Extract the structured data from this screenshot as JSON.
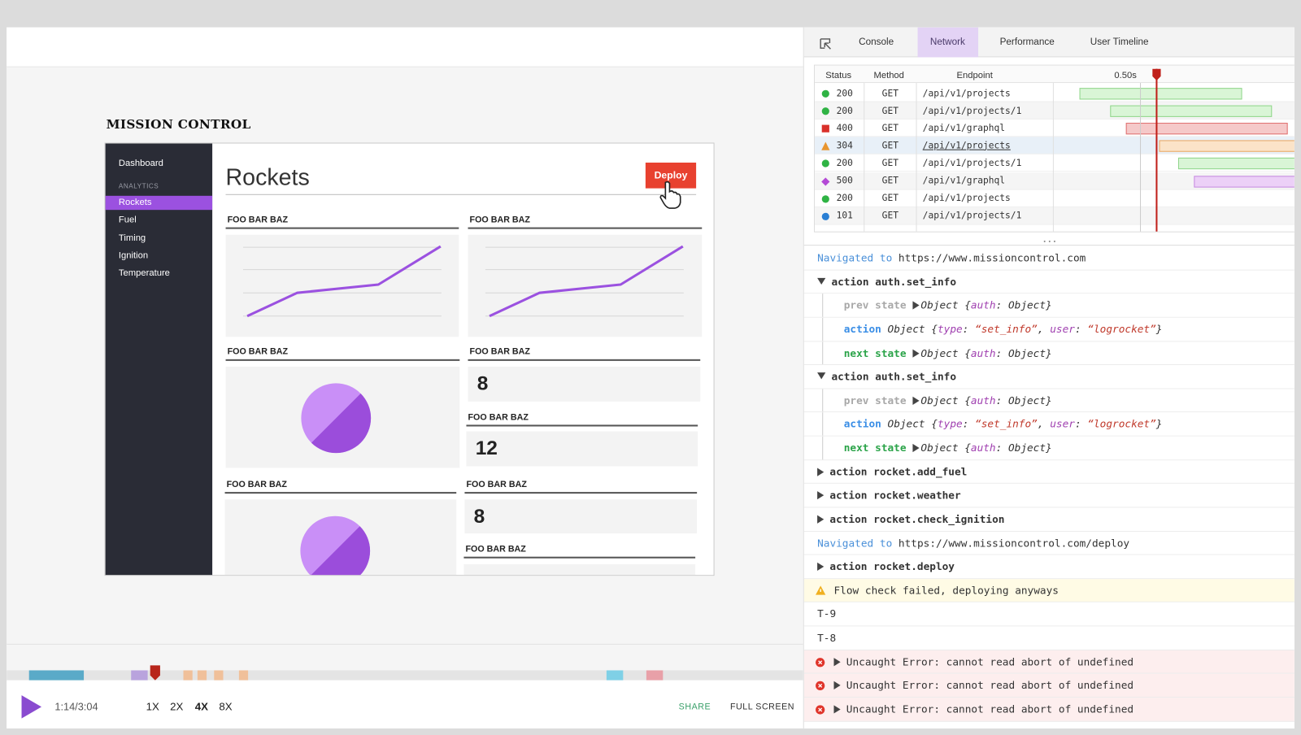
{
  "app": {
    "title": "MISSION CONTROL",
    "sidebar": {
      "top": "Dashboard",
      "section": "ANALYTICS",
      "items": [
        "Rockets",
        "Fuel",
        "Timing",
        "Ignition",
        "Temperature"
      ]
    },
    "page_title": "Rockets",
    "deploy": "Deploy",
    "cards": [
      {
        "label": "FOO BAR BAZ"
      },
      {
        "label": "FOO BAR BAZ"
      },
      {
        "label": "FOO BAR BAZ"
      },
      {
        "label": "FOO BAR BAZ",
        "value": 8
      },
      {
        "label": "FOO BAR BAZ",
        "value": 12
      },
      {
        "label": "FOO BAR BAZ"
      },
      {
        "label": "FOO BAR BAZ",
        "value": 8
      },
      {
        "label": "FOO BAR BAZ"
      }
    ]
  },
  "player": {
    "time": "1:14/3:04",
    "speeds": [
      "1X",
      "2X",
      "4X",
      "8X"
    ],
    "share": "SHARE",
    "fullscreen": "FULL SCREEN"
  },
  "devtools": {
    "tabs": [
      "Console",
      "Network",
      "Performance",
      "User Timeline"
    ],
    "network": {
      "columns": [
        "Status",
        "Method",
        "Endpoint"
      ],
      "time_marker": "0.50s",
      "rows": [
        {
          "status": 200,
          "method": "GET",
          "endpoint": "/api/v1/projects"
        },
        {
          "status": 200,
          "method": "GET",
          "endpoint": "/api/v1/projects/1"
        },
        {
          "status": 400,
          "method": "GET",
          "endpoint": "/api/v1/graphql"
        },
        {
          "status": 304,
          "method": "GET",
          "endpoint": "/api/v1/projects"
        },
        {
          "status": 200,
          "method": "GET",
          "endpoint": "/api/v1/projects/1"
        },
        {
          "status": 500,
          "method": "GET",
          "endpoint": "/api/v1/graphql"
        },
        {
          "status": 200,
          "method": "GET",
          "endpoint": "/api/v1/projects"
        },
        {
          "status": 101,
          "method": "GET",
          "endpoint": "/api/v1/projects/1"
        }
      ]
    },
    "console": [
      {
        "kind": "nav",
        "label": "Navigated to",
        "url": "https://www.missioncontrol.com"
      },
      {
        "kind": "action",
        "open": true,
        "label": "action",
        "name": "auth.set_info",
        "details": [
          {
            "key": "prev state",
            "expand": true,
            "parts": [
              "Object {",
              "auth",
              ": Object}"
            ]
          },
          {
            "key": "action",
            "expand": false,
            "parts": [
              "Object {",
              "type",
              ": ",
              "“set_info”",
              ", ",
              "user",
              ": ",
              "“logrocket”",
              "}"
            ]
          },
          {
            "key": "next state",
            "expand": true,
            "parts": [
              "Object {",
              "auth",
              ": Object}"
            ]
          }
        ]
      },
      {
        "kind": "action",
        "open": true,
        "label": "action",
        "name": "auth.set_info",
        "details": [
          {
            "key": "prev state",
            "expand": true,
            "parts": [
              "Object {",
              "auth",
              ": Object}"
            ]
          },
          {
            "key": "action",
            "expand": false,
            "parts": [
              "Object {",
              "type",
              ": ",
              "“set_info”",
              ", ",
              "user",
              ": ",
              "“logrocket”",
              "}"
            ]
          },
          {
            "key": "next state",
            "expand": true,
            "parts": [
              "Object {",
              "auth",
              ": Object}"
            ]
          }
        ]
      },
      {
        "kind": "action",
        "open": false,
        "label": "action",
        "name": "rocket.add_fuel"
      },
      {
        "kind": "action",
        "open": false,
        "label": "action",
        "name": "rocket.weather"
      },
      {
        "kind": "action",
        "open": false,
        "label": "action",
        "name": "rocket.check_ignition"
      },
      {
        "kind": "nav",
        "label": "Navigated to",
        "url": "https://www.missioncontrol.com/deploy"
      },
      {
        "kind": "action",
        "open": false,
        "label": "action",
        "name": "rocket.deploy"
      },
      {
        "kind": "warning",
        "text": "Flow check failed, deploying anyways"
      },
      {
        "kind": "log",
        "text": "T-9"
      },
      {
        "kind": "log",
        "text": "T-8"
      },
      {
        "kind": "error",
        "text": "Uncaught Error: cannot read abort of undefined"
      },
      {
        "kind": "error",
        "text": "Uncaught Error: cannot read abort of undefined"
      },
      {
        "kind": "error",
        "text": "Uncaught Error: cannot read abort of undefined"
      }
    ]
  }
}
